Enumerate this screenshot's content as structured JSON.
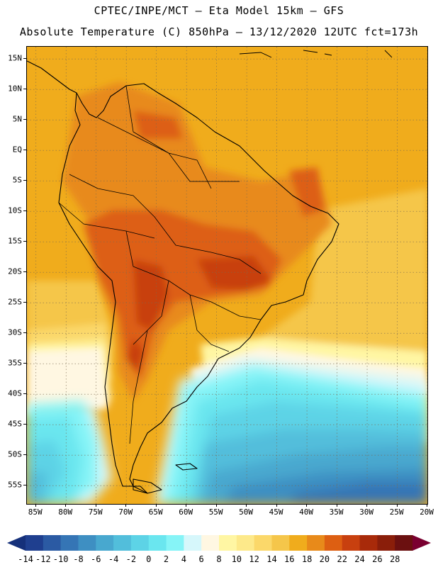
{
  "header": {
    "line1": "CPTEC/INPE/MCT –  Eta Model 15km – GFS",
    "line2": "Absolute Temperature (C) 850hPa – 13/12/2020 12UTC fct=173h"
  },
  "axes": {
    "lat_labels": [
      "15N",
      "10N",
      "5N",
      "EQ",
      "5S",
      "10S",
      "15S",
      "20S",
      "25S",
      "30S",
      "35S",
      "40S",
      "45S",
      "50S",
      "55S"
    ],
    "lat_values": [
      15,
      10,
      5,
      0,
      -5,
      -10,
      -15,
      -20,
      -25,
      -30,
      -35,
      -40,
      -45,
      -50,
      -55
    ],
    "lon_labels": [
      "85W",
      "80W",
      "75W",
      "70W",
      "65W",
      "60W",
      "55W",
      "50W",
      "45W",
      "40W",
      "35W",
      "30W",
      "25W",
      "20W"
    ],
    "lon_values": [
      -85,
      -80,
      -75,
      -70,
      -65,
      -60,
      -55,
      -50,
      -45,
      -40,
      -35,
      -30,
      -25,
      -20
    ],
    "lat_range": [
      -58,
      17
    ],
    "lon_range": [
      -86.5,
      -20
    ]
  },
  "colorbar": {
    "labels": [
      "-14",
      "-12",
      "-10",
      "-8",
      "-6",
      "-4",
      "-2",
      "0",
      "2",
      "4",
      "6",
      "8",
      "10",
      "12",
      "14",
      "16",
      "18",
      "20",
      "22",
      "24",
      "26",
      "28"
    ],
    "colors": [
      "#1f3f8f",
      "#2b5aa3",
      "#3575b5",
      "#3e8fc2",
      "#48a8cf",
      "#52bedb",
      "#5dd3e6",
      "#6ae6ef",
      "#86f4f7",
      "#d6f7fb",
      "#fff7e2",
      "#fff6a3",
      "#fde98a",
      "#fbd86a",
      "#f5c64a",
      "#f0ac1c",
      "#e88a1a",
      "#dd5f12",
      "#c8400f",
      "#a82a0a",
      "#8a1e0a",
      "#6b1010"
    ],
    "under_color": "#15307a",
    "over_color": "#7a0030"
  }
}
